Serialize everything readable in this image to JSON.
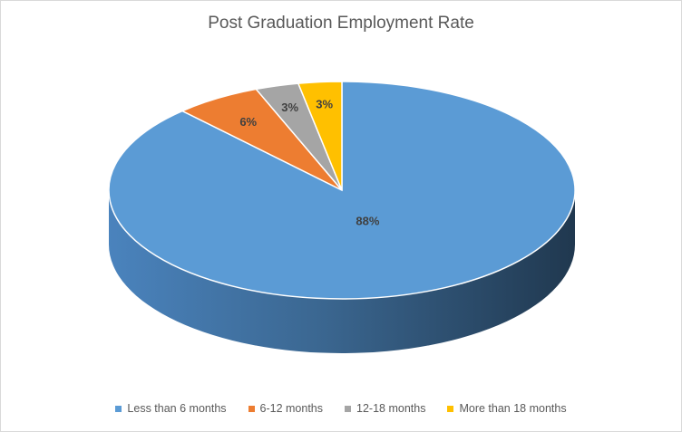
{
  "chart_data": {
    "type": "pie",
    "title": "Post Graduation Employment Rate",
    "categories": [
      "Less than 6 months",
      "6-12 months",
      "12-18 months",
      "More than 18 months"
    ],
    "values": [
      88,
      6,
      3,
      3
    ],
    "data_labels": [
      "88%",
      "6%",
      "3%",
      "3%"
    ],
    "colors": [
      "#5b9bd5",
      "#ed7d31",
      "#a5a5a5",
      "#ffc000"
    ],
    "legend_position": "bottom",
    "style": "3d"
  }
}
